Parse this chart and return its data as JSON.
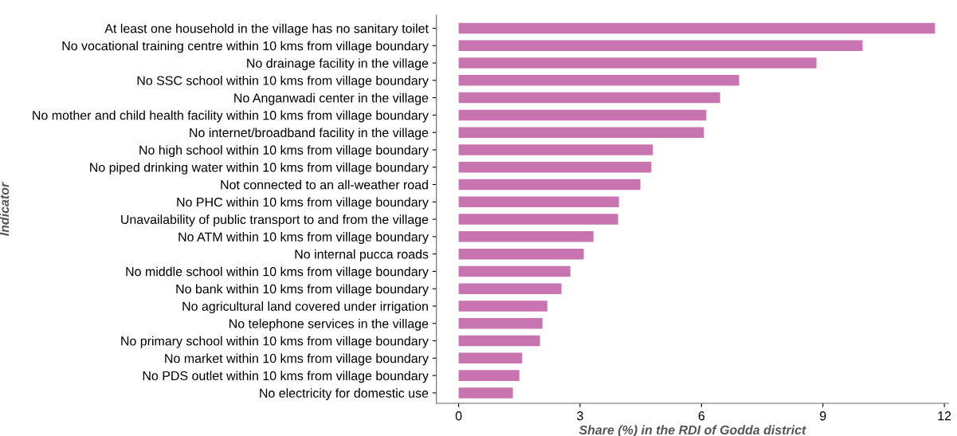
{
  "chart_data": {
    "type": "bar",
    "orientation": "horizontal",
    "xlabel": "Share (%) in the RDI of Godda district",
    "ylabel": "Indicator",
    "categories": [
      "At least one household in the village has no sanitary toilet",
      "No vocational training centre within 10 kms from village boundary",
      "No drainage facility in the village",
      "No SSC school within 10 kms from village boundary",
      "No Anganwadi center in the village",
      "No mother and child health facility within 10 kms from village boundary",
      "No internet/broadband facility in the village",
      "No high school within 10 kms from village boundary",
      "No piped drinking water within 10 kms from village boundary",
      "Not connected to an all-weather road",
      "No PHC within 10 kms from village boundary",
      "Unavailability of public transport to and from the village",
      "No ATM within 10 kms from village boundary",
      "No internal pucca roads",
      "No middle school within 10 kms from village boundary",
      "No bank within 10 kms from village boundary",
      "No agricultural land covered under irrigation",
      "No telephone services in the village",
      "No primary school within 10 kms from village boundary",
      "No market within 10 kms from village boundary",
      "No PDS outlet within 10 kms from village boundary",
      "No electricity for domestic use"
    ],
    "values": [
      11.77,
      9.98,
      8.84,
      6.93,
      6.46,
      6.12,
      6.06,
      4.8,
      4.76,
      4.49,
      3.96,
      3.94,
      3.33,
      3.09,
      2.76,
      2.54,
      2.19,
      2.07,
      2.01,
      1.57,
      1.5,
      1.34
    ],
    "color": "#c774b0",
    "xlim": [
      -0.55,
      12.1
    ],
    "xticks": [
      0,
      3,
      6,
      9,
      12
    ],
    "grid": false
  }
}
